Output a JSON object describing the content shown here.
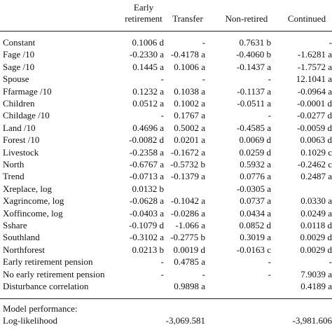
{
  "table": {
    "columns": [
      "Early retirement",
      "Transfer",
      "Non-retired",
      "Continued"
    ],
    "rows": [
      [
        "Constant",
        "0.1006 d",
        "-",
        "0.7631 b",
        "-"
      ],
      [
        "Fage /10",
        "-0.2330 a",
        "-0.4178 a",
        "-0.4060 b",
        "-1.6281 a"
      ],
      [
        "Sage /10",
        "0.1445 a",
        "0.1006 a",
        "-0.1437 a",
        "-1.7572 a"
      ],
      [
        "Spouse",
        "-",
        "-",
        "-",
        "12.1041 a"
      ],
      [
        "Ffarmage /10",
        "0.1232 a",
        "0.1038 a",
        "-0.1137 a",
        "-0.0964 a"
      ],
      [
        "Children",
        "0.0512 a",
        "0.1002 a",
        "-0.0511 a",
        "-0.0001 d"
      ],
      [
        "Childage /10",
        "-",
        "0.1767 a",
        "-",
        "-0.0277 d"
      ],
      [
        "Land /10",
        "0.4696 a",
        "0.5002 a",
        "-0.4585 a",
        "-0.0059 d"
      ],
      [
        "Forest /10",
        "-0.0082 d",
        "0.0201 a",
        "0.0069 d",
        "0.0063 d"
      ],
      [
        "Livestock",
        "-0.2358 a",
        "-0.1672 a",
        "0.0259 d",
        "0.1029 c"
      ],
      [
        "North",
        "-0.6767 a",
        "-0.5732 b",
        "0.5932 a",
        "-0.2462 c"
      ],
      [
        "Trend",
        "-0.0713 a",
        "-0.1379 a",
        "0.0776 a",
        "0.2487 a"
      ],
      [
        "Xreplace, log",
        "0.0132 b",
        null,
        "-0.0305 a",
        null
      ],
      [
        "Xagrincome, log",
        "-0.0628 a",
        "-0.1042 a",
        "0.0737 a",
        "0.0330 a"
      ],
      [
        "Xoffincome, log",
        "-0.0403 a",
        "-0.0286 a",
        "0.0434 a",
        "0.0249 a"
      ],
      [
        "Sshare",
        "-0.1079 d",
        "-1.066 a",
        "0.0852 d",
        "0.0118 d"
      ],
      [
        "Southland",
        "-0.3102 a",
        "-0.2775 b",
        "0.3019 a",
        "0.0029 d"
      ],
      [
        "Northforest",
        "0.0213 b",
        "0.0019 d",
        "-0.0163 c",
        "0.0029 d"
      ],
      [
        "Early retirement pension",
        "-",
        "0.4785 a",
        "-",
        "-"
      ],
      [
        "No early retirement pension",
        "-",
        "-",
        "-",
        "7.9039 a"
      ],
      [
        "Disturbance correlation",
        null,
        "0.9898 a",
        null,
        "0.4189 a"
      ]
    ],
    "performance": {
      "heading": "Model performance:",
      "rows": [
        [
          "Log-likelihood",
          null,
          "-3,069.581",
          null,
          "-3,981.606"
        ]
      ]
    }
  }
}
